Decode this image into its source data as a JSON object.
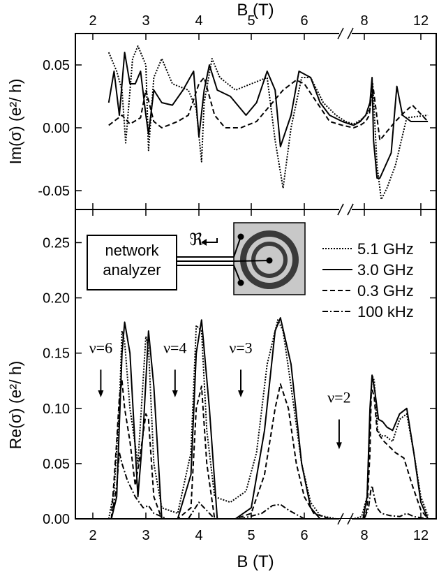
{
  "chart_data": [
    {
      "panel": "top",
      "type": "line",
      "ylabel": "Im(σ)  (e²/ h)",
      "xlabel_top": "B (T)",
      "ylim": [
        -0.065,
        0.075
      ],
      "yticks": [
        "0.05",
        "0.00",
        "-0.05"
      ],
      "yticks_values": [
        0.05,
        0.0,
        -0.05
      ],
      "x_axis_break": "//",
      "xticks": [
        "2",
        "3",
        "4",
        "5",
        "6",
        "8",
        "12"
      ],
      "series": [
        {
          "name": "5.1 GHz",
          "style": "dotted",
          "x": [
            2.3,
            2.45,
            2.55,
            2.62,
            2.75,
            2.85,
            3.0,
            3.05,
            3.15,
            3.3,
            3.5,
            3.8,
            3.95,
            4.05,
            4.1,
            4.25,
            4.4,
            4.7,
            5.0,
            5.3,
            5.45,
            5.6,
            5.75,
            5.95,
            6.2,
            6.6,
            7.0,
            7.3,
            7.6,
            7.85,
            8.1,
            8.4,
            8.6,
            8.9,
            9.2,
            9.6,
            10.2,
            11.0,
            12.5
          ],
          "y": [
            0.06,
            0.045,
            0.03,
            -0.012,
            0.055,
            0.065,
            0.05,
            -0.018,
            0.04,
            0.055,
            0.035,
            0.03,
            0.015,
            -0.027,
            0.02,
            0.055,
            0.04,
            0.03,
            0.035,
            0.04,
            -0.01,
            -0.048,
            0.0,
            0.04,
            0.04,
            0.02,
            0.01,
            0.005,
            0.003,
            0.006,
            0.01,
            0.015,
            0.035,
            -0.03,
            -0.057,
            -0.048,
            -0.03,
            0.008,
            0.01
          ]
        },
        {
          "name": "3.0 GHz",
          "style": "solid",
          "x": [
            2.3,
            2.4,
            2.5,
            2.6,
            2.7,
            2.8,
            2.9,
            3.0,
            3.05,
            3.15,
            3.3,
            3.5,
            3.7,
            3.9,
            4.0,
            4.1,
            4.2,
            4.35,
            4.6,
            4.9,
            5.1,
            5.3,
            5.45,
            5.55,
            5.75,
            5.9,
            6.2,
            6.5,
            6.8,
            7.2,
            7.6,
            7.85,
            8.1,
            8.4,
            8.55,
            8.65,
            8.9,
            9.1,
            9.5,
            9.9,
            10.3,
            10.7,
            11.3,
            12.5
          ],
          "y": [
            0.02,
            0.045,
            0.01,
            0.06,
            0.035,
            0.035,
            0.045,
            0.01,
            -0.005,
            0.03,
            0.02,
            0.018,
            0.03,
            0.045,
            -0.007,
            0.03,
            0.05,
            0.03,
            0.025,
            0.01,
            0.02,
            0.045,
            0.03,
            -0.015,
            0.01,
            0.045,
            0.04,
            0.02,
            0.01,
            0.005,
            0.002,
            0.005,
            0.01,
            0.02,
            0.04,
            -0.01,
            -0.04,
            -0.04,
            -0.03,
            -0.02,
            0.033,
            0.01,
            0.005,
            0.005
          ]
        },
        {
          "name": "0.3 GHz",
          "style": "dashed",
          "x": [
            2.3,
            2.55,
            2.7,
            2.9,
            3.0,
            3.15,
            3.3,
            3.6,
            3.8,
            4.0,
            4.1,
            4.3,
            4.5,
            4.8,
            5.1,
            5.4,
            5.6,
            5.85,
            6.0,
            6.4,
            6.8,
            7.2,
            7.6,
            7.85,
            8.1,
            8.35,
            8.5,
            8.65,
            8.9,
            9.1,
            9.6,
            10.2,
            10.8,
            11.4,
            12.5
          ],
          "y": [
            0.002,
            0.01,
            0.003,
            0.008,
            0.03,
            0.005,
            0.0,
            0.005,
            0.01,
            0.035,
            0.04,
            0.01,
            0.0,
            0.0,
            0.005,
            0.02,
            0.03,
            0.038,
            0.035,
            0.02,
            0.005,
            0.002,
            0.0,
            0.002,
            0.005,
            0.01,
            0.025,
            0.03,
            0.008,
            -0.01,
            -0.003,
            0.005,
            0.012,
            0.018,
            0.005
          ]
        }
      ]
    },
    {
      "panel": "bottom",
      "type": "line",
      "xlabel": "B (T)",
      "ylabel": "Re(σ)  (e²/ h)",
      "ylim": [
        0.0,
        0.28
      ],
      "yticks": [
        "0.00",
        "0.05",
        "0.10",
        "0.15",
        "0.20",
        "0.25"
      ],
      "yticks_values": [
        0.0,
        0.05,
        0.1,
        0.15,
        0.2,
        0.25
      ],
      "x_axis_break": "//",
      "xticks": [
        "2",
        "3",
        "4",
        "5",
        "6",
        "8",
        "12"
      ],
      "legend": [
        "5.1 GHz",
        "3.0 GHz",
        "0.3 GHz",
        "100 kHz"
      ],
      "annotations": [
        {
          "text": "ν=6",
          "x": 2.15,
          "arrow_from": 0.135,
          "arrow_to": 0.11
        },
        {
          "text": "ν=4",
          "x": 3.55,
          "arrow_from": 0.135,
          "arrow_to": 0.11
        },
        {
          "text": "ν=3",
          "x": 4.8,
          "arrow_from": 0.135,
          "arrow_to": 0.11
        },
        {
          "text": "ν=2",
          "x": 7.1,
          "arrow_from": 0.09,
          "arrow_to": 0.063
        }
      ],
      "inset_labels": {
        "instrument": [
          "network",
          "analyzer"
        ],
        "symbol": "ℜ"
      },
      "series": [
        {
          "name": "5.1 GHz",
          "style": "dotted",
          "x": [
            2.3,
            2.4,
            2.5,
            2.55,
            2.6,
            2.7,
            2.85,
            3.0,
            3.05,
            3.15,
            3.3,
            3.6,
            3.85,
            3.95,
            4.05,
            4.15,
            4.3,
            4.6,
            4.9,
            5.1,
            5.3,
            5.5,
            5.6,
            5.75,
            5.95,
            6.2,
            6.5,
            7.0,
            7.6,
            7.9,
            8.2,
            8.4,
            8.55,
            8.7,
            8.95,
            9.2,
            9.5,
            10.0,
            10.5,
            11.0,
            11.5,
            12.0,
            12.5
          ],
          "y": [
            0.0,
            0.025,
            0.1,
            0.17,
            0.16,
            0.1,
            0.05,
            0.165,
            0.155,
            0.05,
            0.01,
            0.005,
            0.06,
            0.175,
            0.17,
            0.08,
            0.02,
            0.015,
            0.025,
            0.06,
            0.14,
            0.18,
            0.17,
            0.12,
            0.05,
            0.015,
            0.003,
            0.0,
            0.0,
            0.002,
            0.02,
            0.09,
            0.13,
            0.125,
            0.08,
            0.075,
            0.075,
            0.07,
            0.09,
            0.095,
            0.06,
            0.02,
            0.003
          ]
        },
        {
          "name": "3.0 GHz",
          "style": "solid",
          "x": [
            2.35,
            2.45,
            2.55,
            2.6,
            2.7,
            2.85,
            2.95,
            3.05,
            3.15,
            3.3,
            3.6,
            3.85,
            3.95,
            4.05,
            4.2,
            4.35,
            4.7,
            5.0,
            5.25,
            5.45,
            5.55,
            5.75,
            5.95,
            6.2,
            6.5,
            7.0,
            7.6,
            7.95,
            8.2,
            8.4,
            8.55,
            8.75,
            9.0,
            9.3,
            9.6,
            10.0,
            10.5,
            11.0,
            11.5,
            12.0,
            12.5
          ],
          "y": [
            0.0,
            0.02,
            0.15,
            0.178,
            0.15,
            0.02,
            0.08,
            0.17,
            0.12,
            0.0,
            0.0,
            0.04,
            0.15,
            0.18,
            0.1,
            0.0,
            0.0,
            0.01,
            0.08,
            0.17,
            0.182,
            0.14,
            0.05,
            0.01,
            0.0,
            0.0,
            0.0,
            0.0,
            0.02,
            0.1,
            0.13,
            0.115,
            0.09,
            0.088,
            0.083,
            0.08,
            0.095,
            0.1,
            0.06,
            0.015,
            0.0
          ]
        },
        {
          "name": "0.3 GHz",
          "style": "dashed",
          "x": [
            2.35,
            2.45,
            2.5,
            2.55,
            2.6,
            2.7,
            2.8,
            2.9,
            3.0,
            3.05,
            3.15,
            3.3,
            3.6,
            3.85,
            3.95,
            4.05,
            4.15,
            4.3,
            4.7,
            5.0,
            5.25,
            5.45,
            5.55,
            5.7,
            5.85,
            6.0,
            6.3,
            6.8,
            7.6,
            8.0,
            8.2,
            8.4,
            8.5,
            8.7,
            8.9,
            9.1,
            9.4,
            9.8,
            10.2,
            10.8,
            11.4,
            12.0,
            12.5
          ],
          "y": [
            0.0,
            0.07,
            0.11,
            0.125,
            0.1,
            0.07,
            0.03,
            0.06,
            0.095,
            0.09,
            0.02,
            0.0,
            0.0,
            0.01,
            0.1,
            0.12,
            0.05,
            0.0,
            0.0,
            0.005,
            0.04,
            0.1,
            0.122,
            0.1,
            0.05,
            0.02,
            0.005,
            0.0,
            0.0,
            0.0,
            0.01,
            0.06,
            0.12,
            0.11,
            0.08,
            0.075,
            0.07,
            0.065,
            0.06,
            0.055,
            0.03,
            0.008,
            0.0
          ]
        },
        {
          "name": "100 kHz",
          "style": "dashdot",
          "x": [
            2.35,
            2.45,
            2.5,
            2.55,
            2.65,
            2.8,
            2.95,
            3.05,
            3.15,
            3.4,
            3.8,
            4.0,
            4.1,
            4.3,
            4.8,
            5.2,
            5.4,
            5.55,
            5.7,
            6.0,
            7.0,
            8.0,
            8.3,
            8.45,
            8.55,
            8.7,
            8.9,
            9.2,
            9.8,
            10.5,
            11.0,
            11.5,
            12.5
          ],
          "y": [
            0.0,
            0.03,
            0.06,
            0.05,
            0.035,
            0.02,
            0.01,
            0.012,
            0.005,
            0.0,
            0.0,
            0.015,
            0.01,
            0.0,
            0.0,
            0.005,
            0.012,
            0.013,
            0.008,
            0.0,
            0.0,
            0.0,
            0.01,
            0.025,
            0.03,
            0.02,
            0.01,
            0.005,
            0.003,
            0.002,
            0.005,
            0.002,
            0.0
          ]
        }
      ]
    }
  ]
}
